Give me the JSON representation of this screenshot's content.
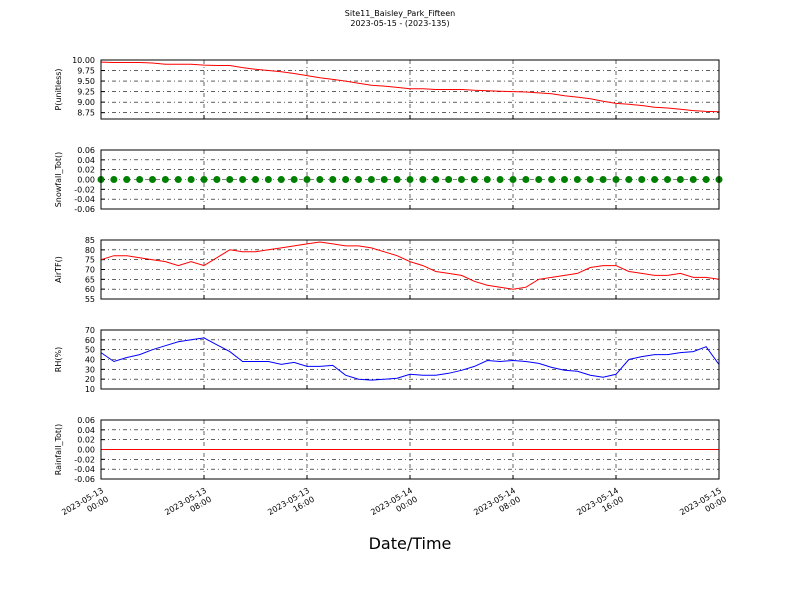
{
  "chart_data": {
    "type": "line",
    "title": "Site11_Baisley_Park_Fifteen",
    "subtitle": "2023-05-15 - (2023-135)",
    "xlabel": "Date/Time",
    "x": [
      "2023-05-13 00:00",
      "2023-05-13 01:00",
      "2023-05-13 02:00",
      "2023-05-13 03:00",
      "2023-05-13 04:00",
      "2023-05-13 05:00",
      "2023-05-13 06:00",
      "2023-05-13 07:00",
      "2023-05-13 08:00",
      "2023-05-13 09:00",
      "2023-05-13 10:00",
      "2023-05-13 11:00",
      "2023-05-13 12:00",
      "2023-05-13 13:00",
      "2023-05-13 14:00",
      "2023-05-13 15:00",
      "2023-05-13 16:00",
      "2023-05-13 17:00",
      "2023-05-13 18:00",
      "2023-05-13 19:00",
      "2023-05-13 20:00",
      "2023-05-13 21:00",
      "2023-05-13 22:00",
      "2023-05-13 23:00",
      "2023-05-14 00:00",
      "2023-05-14 01:00",
      "2023-05-14 02:00",
      "2023-05-14 03:00",
      "2023-05-14 04:00",
      "2023-05-14 05:00",
      "2023-05-14 06:00",
      "2023-05-14 07:00",
      "2023-05-14 08:00",
      "2023-05-14 09:00",
      "2023-05-14 10:00",
      "2023-05-14 11:00",
      "2023-05-14 12:00",
      "2023-05-14 13:00",
      "2023-05-14 14:00",
      "2023-05-14 15:00",
      "2023-05-14 16:00",
      "2023-05-14 17:00",
      "2023-05-14 18:00",
      "2023-05-14 19:00",
      "2023-05-14 20:00",
      "2023-05-14 21:00",
      "2023-05-14 22:00",
      "2023-05-14 23:00",
      "2023-05-15 00:00"
    ],
    "xlim": [
      "2023-05-13 00:00",
      "2023-05-15 00:00"
    ],
    "xticks": [
      {
        "value": "2023-05-13 00:00",
        "label": "2023-05-13\n00:00"
      },
      {
        "value": "2023-05-13 08:00",
        "label": "2023-05-13\n08:00"
      },
      {
        "value": "2023-05-13 16:00",
        "label": "2023-05-13\n16:00"
      },
      {
        "value": "2023-05-14 00:00",
        "label": "2023-05-14\n00:00"
      },
      {
        "value": "2023-05-14 08:00",
        "label": "2023-05-14\n08:00"
      },
      {
        "value": "2023-05-14 16:00",
        "label": "2023-05-14\n16:00"
      },
      {
        "value": "2023-05-15 00:00",
        "label": "2023-05-15\n00:00"
      }
    ],
    "grid": true,
    "panels": [
      {
        "ylabel": "P(unitless)",
        "ylim": [
          8.6,
          10.0
        ],
        "yticks": [
          {
            "value": 8.75,
            "label": "8.75"
          },
          {
            "value": 9.0,
            "label": "9.00"
          },
          {
            "value": 9.25,
            "label": "9.25"
          },
          {
            "value": 9.5,
            "label": "9.50"
          },
          {
            "value": 9.75,
            "label": "9.75"
          },
          {
            "value": 10.0,
            "label": "10.00"
          }
        ],
        "series": [
          {
            "color": "#ff0000",
            "values": [
              9.95,
              9.94,
              9.94,
              9.94,
              9.93,
              9.9,
              9.9,
              9.9,
              9.88,
              9.87,
              9.87,
              9.82,
              9.78,
              9.75,
              9.72,
              9.68,
              9.63,
              9.58,
              9.54,
              9.5,
              9.45,
              9.4,
              9.38,
              9.35,
              9.32,
              9.32,
              9.3,
              9.3,
              9.3,
              9.28,
              9.27,
              9.26,
              9.25,
              9.24,
              9.22,
              9.2,
              9.15,
              9.12,
              9.08,
              9.02,
              8.97,
              8.95,
              8.92,
              8.88,
              8.86,
              8.83,
              8.8,
              8.78,
              8.77
            ]
          }
        ]
      },
      {
        "ylabel": "Snowfall_Tot()",
        "ylim": [
          -0.06,
          0.06
        ],
        "yticks": [
          -0.06,
          -0.04,
          -0.02,
          {
            "value": 0,
            "label": "0.00"
          },
          0.02,
          0.04,
          0.06
        ],
        "series": [
          {
            "color": "#008000",
            "marker": "o",
            "values": [
              0,
              0,
              0,
              0,
              0,
              0,
              0,
              0,
              0,
              0,
              0,
              0,
              0,
              0,
              0,
              0,
              0,
              0,
              0,
              0,
              0,
              0,
              0,
              0,
              0,
              0,
              0,
              0,
              0,
              0,
              0,
              0,
              0,
              0,
              0,
              0,
              0,
              0,
              0,
              0,
              0,
              0,
              0,
              0,
              0,
              0,
              0,
              0,
              0
            ]
          }
        ]
      },
      {
        "ylabel": "AirTF()",
        "ylim": [
          55,
          85
        ],
        "yticks": [
          55,
          60,
          65,
          70,
          75,
          80,
          85
        ],
        "series": [
          {
            "color": "#ff0000",
            "values": [
              75,
              77,
              77,
              76,
              75,
              74,
              72,
              74,
              72,
              76,
              80,
              79,
              79,
              80,
              81,
              82,
              83,
              84,
              83,
              82,
              82,
              81,
              79,
              77,
              74,
              72,
              69,
              68,
              67,
              64,
              62,
              61,
              60,
              61,
              65,
              66,
              67,
              68,
              71,
              72,
              72,
              69,
              68,
              67,
              67,
              68,
              66,
              66,
              65
            ]
          }
        ]
      },
      {
        "ylabel": "RH(%)",
        "ylim": [
          10,
          70
        ],
        "yticks": [
          10,
          20,
          30,
          40,
          50,
          60,
          70
        ],
        "series": [
          {
            "color": "#0000ff",
            "values": [
              47,
              38,
              42,
              45,
              50,
              54,
              58,
              60,
              62,
              55,
              48,
              38,
              38,
              38,
              35,
              37,
              33,
              33,
              34,
              24,
              20,
              19,
              20,
              21,
              25,
              24,
              24,
              26,
              29,
              33,
              39,
              38,
              39,
              38,
              36,
              32,
              29,
              28,
              24,
              22,
              25,
              40,
              43,
              45,
              45,
              47,
              48,
              53,
              35
            ]
          }
        ]
      },
      {
        "ylabel": "Rainfall_Tot()",
        "ylim": [
          -0.06,
          0.06
        ],
        "yticks": [
          -0.06,
          -0.04,
          -0.02,
          {
            "value": 0,
            "label": "0.00"
          },
          0.02,
          0.04,
          0.06
        ],
        "series": [
          {
            "color": "#ff0000",
            "values": [
              0,
              0,
              0,
              0,
              0,
              0,
              0,
              0,
              0,
              0,
              0,
              0,
              0,
              0,
              0,
              0,
              0,
              0,
              0,
              0,
              0,
              0,
              0,
              0,
              0,
              0,
              0,
              0,
              0,
              0,
              0,
              0,
              0,
              0,
              0,
              0,
              0,
              0,
              0,
              0,
              0,
              0,
              0,
              0,
              0,
              0,
              0,
              0,
              0
            ]
          }
        ]
      }
    ]
  }
}
